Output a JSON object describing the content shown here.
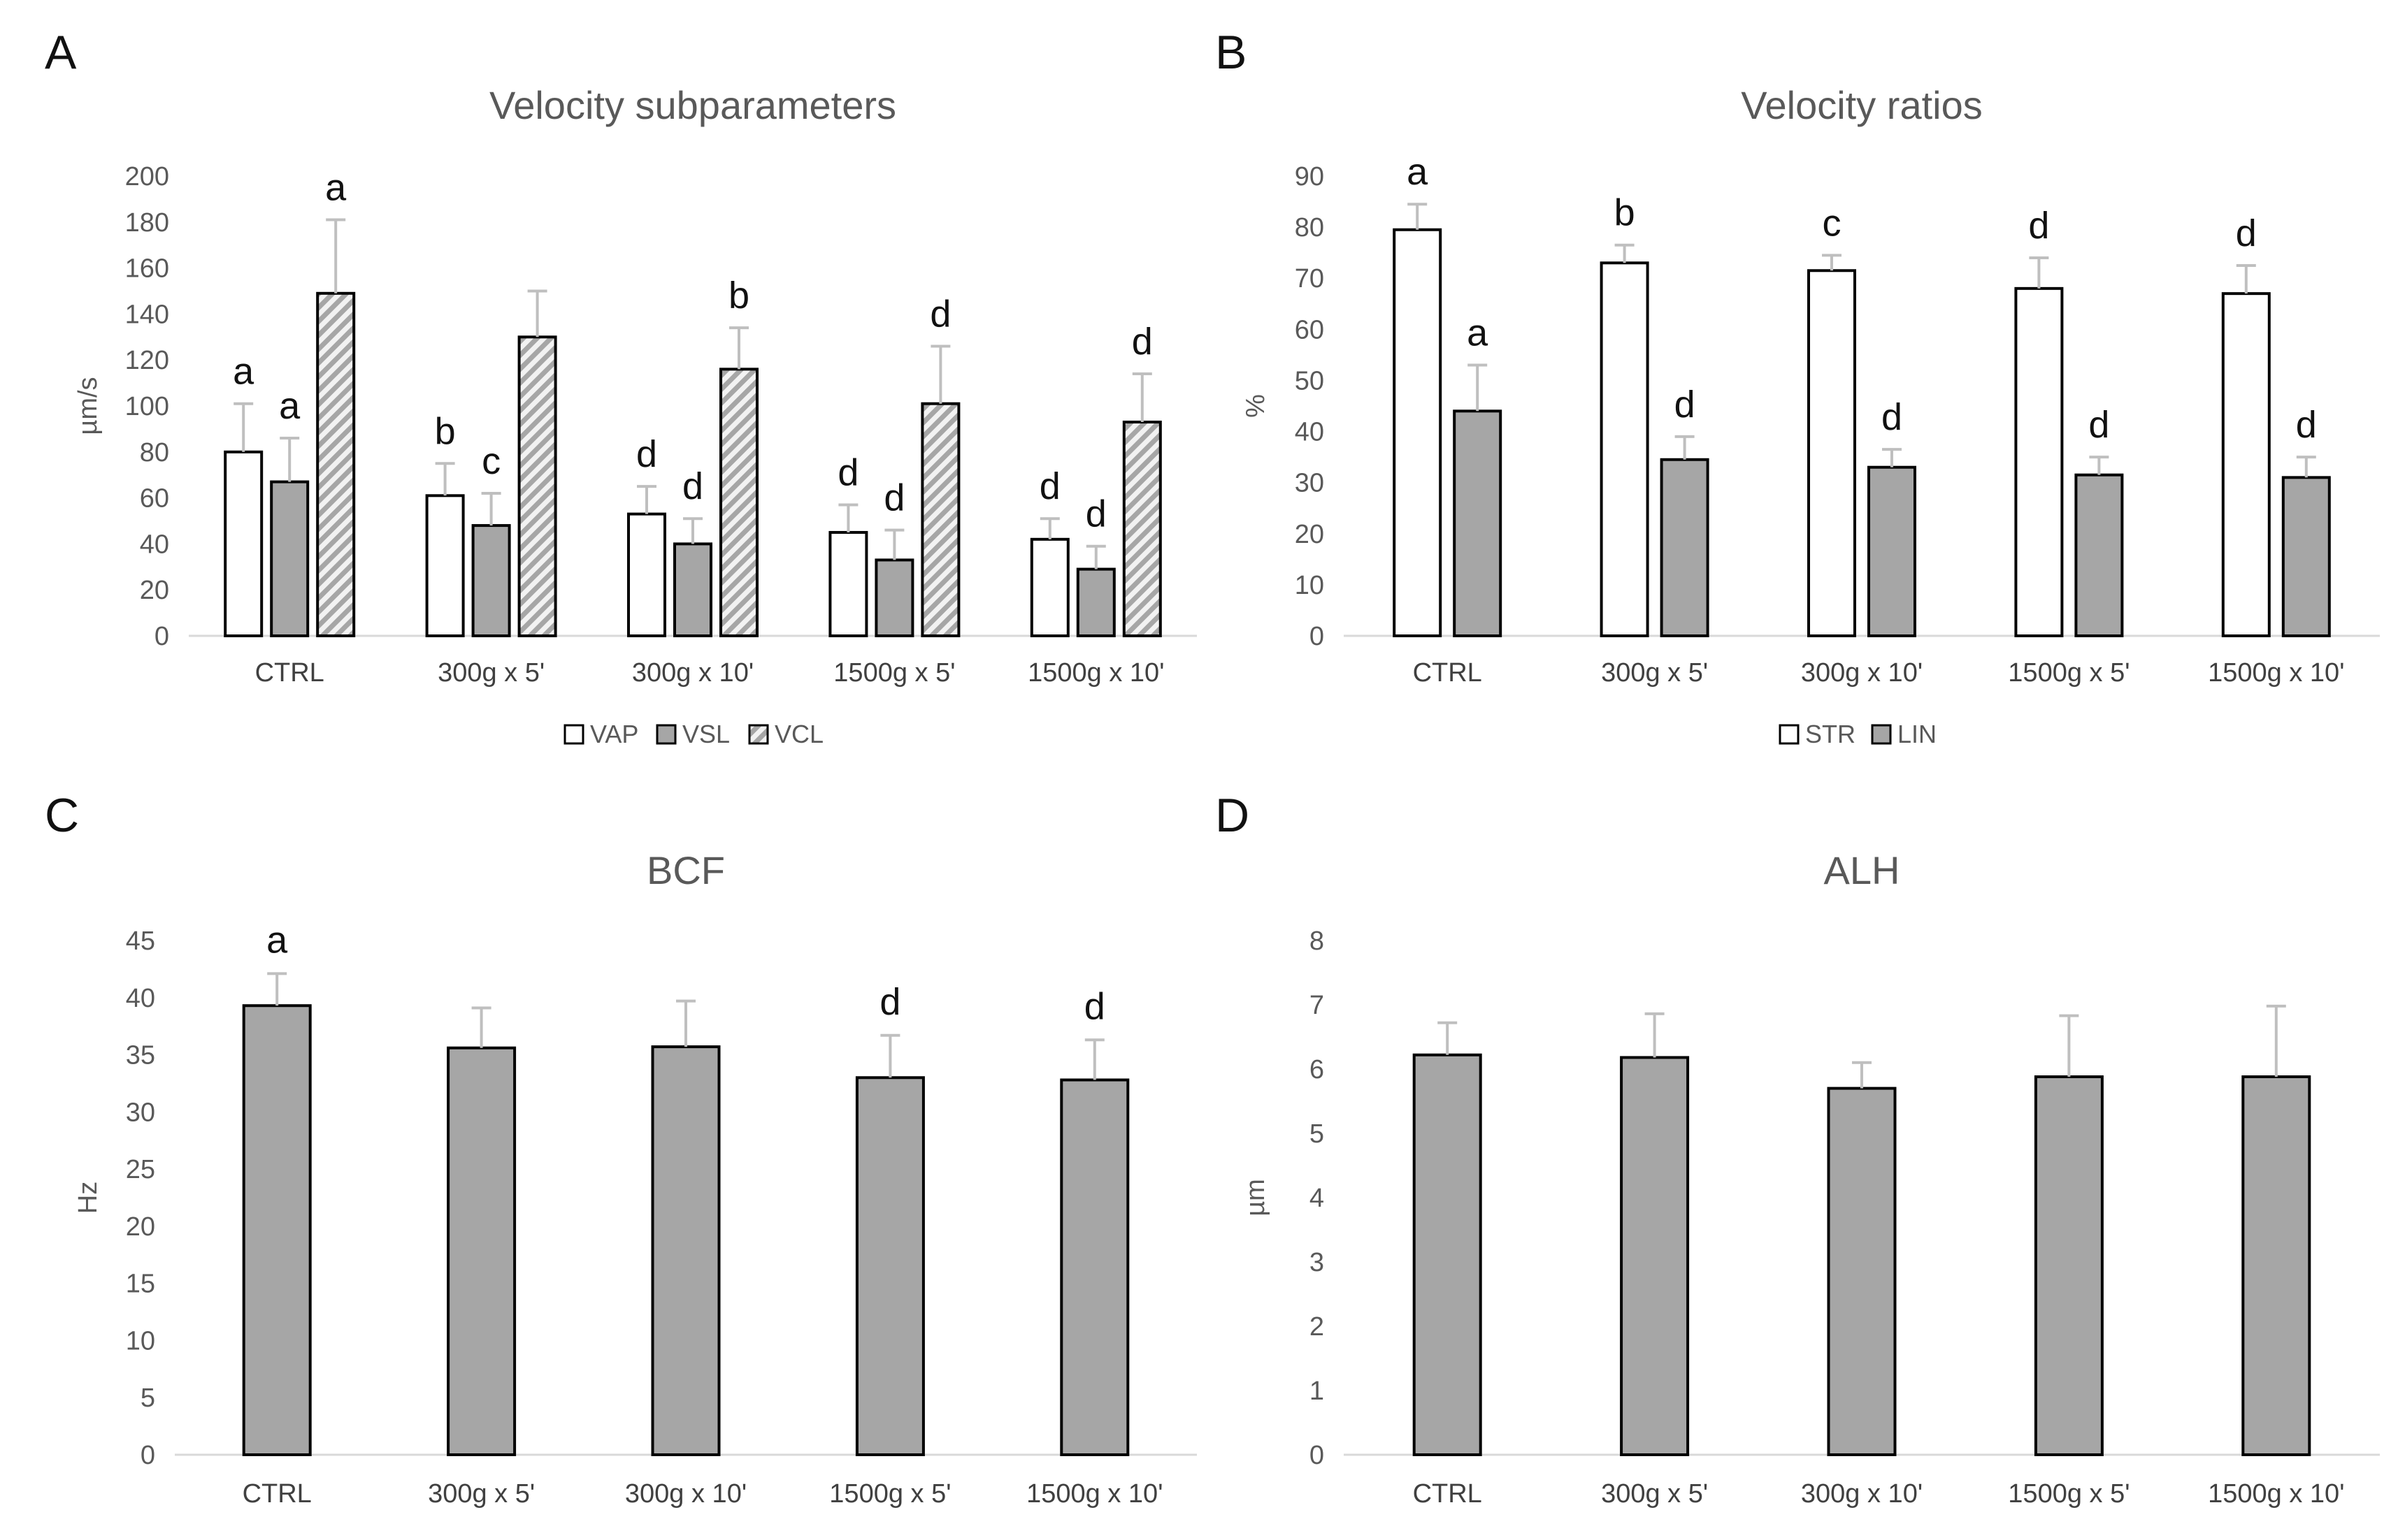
{
  "figure": {
    "panels": [
      "A",
      "B",
      "C",
      "D"
    ]
  },
  "colors": {
    "white_bar": "#ffffff",
    "gray_bar": "#a6a6a6",
    "hatch_bg": "#f2f2f2",
    "hatch_line": "#a6a6a6",
    "bar_outline": "#000000",
    "error_bar": "#bfbfbf",
    "axis_line": "#d9d9d9",
    "text": "#595959"
  },
  "chart_data": [
    {
      "panel": "A",
      "type": "bar",
      "title": "Velocity subparameters",
      "ylabel": "µm/s",
      "ylim": [
        0,
        200
      ],
      "ytick_step": 20,
      "categories": [
        "CTRL",
        "300g x 5'",
        "300g x 10'",
        "1500g x 5'",
        "1500g x 10'"
      ],
      "legend_position": "bottom",
      "series": [
        {
          "name": "VAP",
          "fill": "white",
          "values": [
            80,
            61,
            53,
            45,
            42
          ],
          "errors": [
            21,
            14,
            12,
            12,
            9
          ],
          "labels": [
            "a",
            "b",
            "d",
            "d",
            "d"
          ]
        },
        {
          "name": "VSL",
          "fill": "gray",
          "values": [
            67,
            48,
            40,
            33,
            29
          ],
          "errors": [
            19,
            14,
            11,
            13,
            10
          ],
          "labels": [
            "a",
            "c",
            "d",
            "d",
            "d"
          ]
        },
        {
          "name": "VCL",
          "fill": "hatch",
          "values": [
            149,
            130,
            116,
            101,
            93
          ],
          "errors": [
            32,
            20,
            18,
            25,
            21
          ],
          "labels": [
            "a",
            "",
            "b",
            "d",
            "d"
          ]
        }
      ]
    },
    {
      "panel": "B",
      "type": "bar",
      "title": "Velocity ratios",
      "ylabel": "%",
      "ylim": [
        0,
        90
      ],
      "ytick_step": 10,
      "categories": [
        "CTRL",
        "300g x 5'",
        "300g x 10'",
        "1500g x 5'",
        "1500g x 10'"
      ],
      "legend_position": "bottom",
      "series": [
        {
          "name": "STR",
          "fill": "white",
          "values": [
            79.5,
            73,
            71.5,
            68,
            67
          ],
          "errors": [
            5,
            3.5,
            3,
            6,
            5.5
          ],
          "labels": [
            "a",
            "b",
            "c",
            "d",
            "d"
          ]
        },
        {
          "name": "LIN",
          "fill": "gray",
          "values": [
            44,
            34.5,
            33,
            31.5,
            31
          ],
          "errors": [
            9,
            4.5,
            3.5,
            3.5,
            4
          ],
          "labels": [
            "a",
            "d",
            "d",
            "d",
            "d"
          ]
        }
      ]
    },
    {
      "panel": "C",
      "type": "bar",
      "title": "BCF",
      "ylabel": "Hz",
      "ylim": [
        0,
        45
      ],
      "ytick_step": 5,
      "categories": [
        "CTRL",
        "300g x 5'",
        "300g x 10'",
        "1500g x 5'",
        "1500g x 10'"
      ],
      "series": [
        {
          "name": "",
          "fill": "gray",
          "values": [
            39.3,
            35.6,
            35.7,
            33,
            32.8
          ],
          "errors": [
            2.8,
            3.5,
            4,
            3.7,
            3.5
          ],
          "labels": [
            "a",
            "",
            "",
            "d",
            "d"
          ]
        }
      ]
    },
    {
      "panel": "D",
      "type": "bar",
      "title": "ALH",
      "ylabel": "µm",
      "ylim": [
        0,
        8
      ],
      "ytick_step": 1,
      "categories": [
        "CTRL",
        "300g x 5'",
        "300g x 10'",
        "1500g x 5'",
        "1500g x 10'"
      ],
      "series": [
        {
          "name": "",
          "fill": "gray",
          "values": [
            6.22,
            6.18,
            5.7,
            5.88,
            5.88
          ],
          "errors": [
            0.5,
            0.68,
            0.4,
            0.95,
            1.1
          ],
          "labels": [
            "",
            "",
            "",
            "",
            ""
          ]
        }
      ]
    }
  ]
}
